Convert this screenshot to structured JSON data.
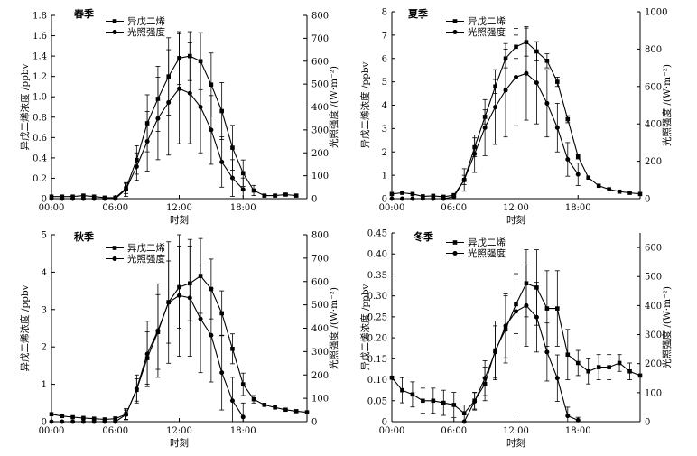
{
  "colors": {
    "line": "#000000",
    "background": "#ffffff"
  },
  "chart_data": [
    {
      "type": "line",
      "title": "春季",
      "xlabel": "时刻",
      "ylabel": "异戊二烯浓度 /ppbv",
      "y2label": "光照强度 /(W·m⁻²)",
      "xlim": [
        0,
        24
      ],
      "ylim": [
        0,
        1.8
      ],
      "y2lim": [
        0,
        800
      ],
      "xticks": [
        0,
        6,
        12,
        18
      ],
      "xtick_labels": [
        "00:00",
        "06:00",
        "12:00",
        "18:00"
      ],
      "yticks": [
        0,
        0.2,
        0.4,
        0.6,
        0.8,
        1.0,
        1.2,
        1.4,
        1.6,
        1.8
      ],
      "ytick_labels": [
        "0",
        "0.2",
        "0.4",
        "0.6",
        "0.8",
        "1.0",
        "1.2",
        "1.4",
        "1.6",
        "1.8"
      ],
      "y2ticks": [
        0,
        100,
        200,
        300,
        400,
        500,
        600,
        700,
        800
      ],
      "y2tick_labels": [
        "0",
        "100",
        "200",
        "300",
        "400",
        "500",
        "600",
        "700",
        "800"
      ],
      "legend": [
        "异戊二烯",
        "光照强度"
      ],
      "series": [
        {
          "name": "异戊二烯",
          "marker": "square",
          "axis": "left",
          "x": [
            0,
            1,
            2,
            3,
            4,
            5,
            6,
            7,
            8,
            9,
            10,
            11,
            12,
            13,
            14,
            15,
            16,
            17,
            18,
            19,
            20,
            21,
            22,
            23
          ],
          "y": [
            0.02,
            0.02,
            0.02,
            0.03,
            0.02,
            0.01,
            0.01,
            0.1,
            0.38,
            0.74,
            0.98,
            1.2,
            1.38,
            1.4,
            1.35,
            1.12,
            0.86,
            0.5,
            0.25,
            0.08,
            0.03,
            0.03,
            0.04,
            0.03
          ],
          "err": [
            0,
            0,
            0,
            0,
            0,
            0,
            0,
            0.05,
            0.14,
            0.28,
            0.32,
            0.38,
            0.26,
            0.24,
            0.28,
            0.31,
            0.28,
            0.22,
            0.13,
            0.05,
            0.01,
            0.01,
            0.01,
            0
          ]
        },
        {
          "name": "光照强度",
          "marker": "circle",
          "axis": "right",
          "x": [
            0,
            1,
            2,
            3,
            4,
            5,
            6,
            7,
            8,
            9,
            10,
            11,
            12,
            13,
            14,
            15,
            16,
            17,
            18
          ],
          "y": [
            0,
            0,
            0,
            0,
            0,
            0,
            0,
            40,
            140,
            250,
            350,
            420,
            480,
            460,
            400,
            300,
            160,
            90,
            40
          ],
          "err": [
            0,
            0,
            0,
            0,
            0,
            0,
            0,
            30,
            60,
            130,
            180,
            230,
            240,
            220,
            200,
            150,
            110,
            80,
            50
          ]
        }
      ]
    },
    {
      "type": "line",
      "title": "夏季",
      "xlabel": "时刻",
      "ylabel": "异戊二烯浓度 /ppbv",
      "y2label": "光照强度 /(W·m⁻²)",
      "xlim": [
        0,
        24
      ],
      "ylim": [
        0,
        8
      ],
      "y2lim": [
        0,
        1000
      ],
      "xticks": [
        0,
        6,
        12,
        18
      ],
      "xtick_labels": [
        "00:00",
        "06:00",
        "12:00",
        "18:00"
      ],
      "yticks": [
        0,
        1,
        2,
        3,
        4,
        5,
        6,
        7,
        8
      ],
      "ytick_labels": [
        "0",
        "1",
        "2",
        "3",
        "4",
        "5",
        "6",
        "7",
        "8"
      ],
      "y2ticks": [
        0,
        200,
        400,
        600,
        800,
        1000
      ],
      "y2tick_labels": [
        "0",
        "200",
        "400",
        "600",
        "800",
        "1000"
      ],
      "legend": [
        "异戊二烯",
        "光照强度"
      ],
      "series": [
        {
          "name": "异戊二烯",
          "marker": "square",
          "axis": "left",
          "x": [
            0,
            1,
            2,
            3,
            4,
            5,
            6,
            7,
            8,
            9,
            10,
            11,
            12,
            13,
            14,
            15,
            16,
            17,
            18,
            19,
            20,
            21,
            22,
            23,
            24
          ],
          "y": [
            0.2,
            0.25,
            0.2,
            0.1,
            0.12,
            0.08,
            0.15,
            0.8,
            2.2,
            3.5,
            4.8,
            6.0,
            6.5,
            6.7,
            6.3,
            5.9,
            5.0,
            3.4,
            1.8,
            0.9,
            0.55,
            0.4,
            0.3,
            0.25,
            0.2
          ],
          "err": [
            0,
            0,
            0,
            0,
            0,
            0,
            0.05,
            0.2,
            0.4,
            0.3,
            0.3,
            0.4,
            0.5,
            0.6,
            0.4,
            0.3,
            0.2,
            0.15,
            0.1,
            0,
            0,
            0,
            0,
            0,
            0
          ]
        },
        {
          "name": "光照强度",
          "marker": "circle",
          "axis": "right",
          "x": [
            0,
            1,
            2,
            3,
            4,
            5,
            6,
            7,
            8,
            9,
            10,
            11,
            12,
            13,
            14,
            15,
            16,
            17,
            18
          ],
          "y": [
            0,
            0,
            0,
            0,
            0,
            0,
            10,
            100,
            240,
            380,
            490,
            580,
            650,
            670,
            620,
            510,
            380,
            210,
            130
          ],
          "err": [
            0,
            0,
            0,
            0,
            0,
            0,
            10,
            60,
            100,
            150,
            200,
            250,
            260,
            250,
            220,
            180,
            130,
            90,
            60
          ]
        }
      ]
    },
    {
      "type": "line",
      "title": "秋季",
      "xlabel": "时刻",
      "ylabel": "异戊二烯浓度 /ppbv",
      "y2label": "光照强度 /(W·m⁻²)",
      "xlim": [
        0,
        24
      ],
      "ylim": [
        0,
        5
      ],
      "y2lim": [
        0,
        800
      ],
      "xticks": [
        0,
        6,
        12,
        18
      ],
      "xtick_labels": [
        "00:00",
        "06:00",
        "12:00",
        "18:00"
      ],
      "yticks": [
        0,
        1,
        2,
        3,
        4,
        5
      ],
      "ytick_labels": [
        "0",
        "1",
        "2",
        "3",
        "4",
        "5"
      ],
      "y2ticks": [
        0,
        100,
        200,
        300,
        400,
        500,
        600,
        700,
        800
      ],
      "y2tick_labels": [
        "0",
        "100",
        "200",
        "300",
        "400",
        "500",
        "600",
        "700",
        "800"
      ],
      "legend": [
        "异戊二烯",
        "光照强度"
      ],
      "series": [
        {
          "name": "异戊二烯",
          "marker": "square",
          "axis": "left",
          "x": [
            0,
            1,
            2,
            3,
            4,
            5,
            6,
            7,
            8,
            9,
            10,
            11,
            12,
            13,
            14,
            15,
            16,
            17,
            18,
            19,
            20,
            21,
            22,
            23,
            24
          ],
          "y": [
            0.2,
            0.15,
            0.12,
            0.1,
            0.08,
            0.06,
            0.08,
            0.2,
            0.85,
            1.7,
            2.4,
            3.2,
            3.6,
            3.7,
            3.9,
            3.55,
            2.9,
            1.95,
            1.0,
            0.6,
            0.45,
            0.38,
            0.32,
            0.28,
            0.25
          ],
          "err": [
            0,
            0,
            0,
            0,
            0,
            0,
            0.05,
            0.15,
            0.3,
            0.7,
            1.0,
            1.1,
            1.1,
            1.0,
            1.0,
            0.8,
            0.6,
            0.4,
            0.3,
            0.1,
            0,
            0,
            0,
            0,
            0
          ]
        },
        {
          "name": "光照强度",
          "marker": "circle",
          "axis": "right",
          "x": [
            0,
            1,
            2,
            3,
            4,
            5,
            6,
            7,
            8,
            9,
            10,
            11,
            12,
            13,
            14,
            15,
            16,
            17,
            18
          ],
          "y": [
            0,
            0,
            0,
            0,
            0,
            0,
            0,
            30,
            140,
            290,
            390,
            510,
            540,
            530,
            440,
            370,
            210,
            90,
            20
          ],
          "err": [
            0,
            0,
            0,
            0,
            0,
            0,
            0,
            20,
            60,
            140,
            200,
            260,
            260,
            250,
            230,
            200,
            160,
            100,
            60
          ]
        }
      ]
    },
    {
      "type": "line",
      "title": "冬季",
      "xlabel": "时刻",
      "ylabel": "异戊二烯浓度 /ppbv",
      "y2label": "光照强度 /(W·m⁻²)",
      "xlim": [
        0,
        24
      ],
      "ylim": [
        0,
        0.45
      ],
      "y2lim": [
        0,
        650
      ],
      "xticks": [
        0,
        6,
        12,
        18
      ],
      "xtick_labels": [
        "00:00",
        "06:00",
        "12:00",
        "18:00"
      ],
      "yticks": [
        0,
        0.05,
        0.1,
        0.15,
        0.2,
        0.25,
        0.3,
        0.35,
        0.4,
        0.45
      ],
      "ytick_labels": [
        "0",
        "0.05",
        "0.10",
        "0.15",
        "0.20",
        "0.25",
        "0.30",
        "0.35",
        "0.40",
        "0.45"
      ],
      "y2ticks": [
        0,
        100,
        200,
        300,
        400,
        500,
        600
      ],
      "y2tick_labels": [
        "0",
        "100",
        "200",
        "300",
        "400",
        "500",
        "600"
      ],
      "legend": [
        "异戊二烯",
        "光照强度"
      ],
      "series": [
        {
          "name": "异戊二烯",
          "marker": "square",
          "axis": "left",
          "x": [
            0,
            1,
            2,
            3,
            4,
            5,
            6,
            7,
            8,
            9,
            10,
            11,
            12,
            13,
            14,
            15,
            16,
            17,
            18,
            19,
            20,
            21,
            22,
            23,
            24
          ],
          "y": [
            0.105,
            0.075,
            0.065,
            0.05,
            0.05,
            0.045,
            0.04,
            0.02,
            0.05,
            0.09,
            0.17,
            0.22,
            0.28,
            0.33,
            0.32,
            0.27,
            0.27,
            0.16,
            0.14,
            0.12,
            0.13,
            0.13,
            0.14,
            0.12,
            0.11
          ],
          "err": [
            0,
            0.03,
            0.03,
            0.03,
            0.03,
            0.03,
            0.03,
            0.02,
            0.02,
            0.04,
            0.07,
            0.08,
            0.07,
            0.08,
            0.09,
            0.09,
            0.09,
            0.06,
            0.03,
            0.03,
            0.03,
            0.03,
            0.02,
            0.02,
            0
          ]
        },
        {
          "name": "光照强度",
          "marker": "circle",
          "axis": "right",
          "x": [
            7,
            8,
            9,
            10,
            11,
            12,
            13,
            14,
            15,
            16,
            17,
            18
          ],
          "y": [
            0,
            70,
            150,
            240,
            330,
            380,
            400,
            360,
            240,
            150,
            20,
            5
          ],
          "err": [
            0,
            30,
            60,
            90,
            110,
            130,
            140,
            120,
            100,
            80,
            30,
            10
          ]
        }
      ]
    }
  ]
}
